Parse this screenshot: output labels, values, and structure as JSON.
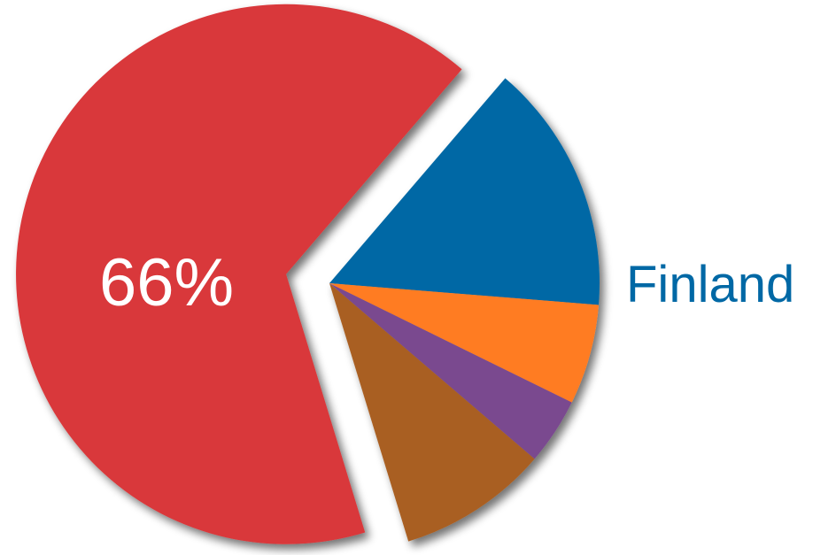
{
  "chart_data": {
    "type": "pie",
    "slices": [
      {
        "value": 66,
        "color": "#d9383a",
        "exploded": true
      },
      {
        "value": 15,
        "color": "#0068a5"
      },
      {
        "value": 6,
        "color": "#ff7b22"
      },
      {
        "value": 4,
        "color": "#7a498f"
      },
      {
        "value": 9,
        "color": "#a95f22"
      }
    ],
    "annotations": [
      {
        "text": "66%",
        "slice": 0,
        "placement": "inside"
      },
      {
        "text": "Finland",
        "slice": 2,
        "placement": "outside-right",
        "color": "#0068a5"
      }
    ]
  }
}
